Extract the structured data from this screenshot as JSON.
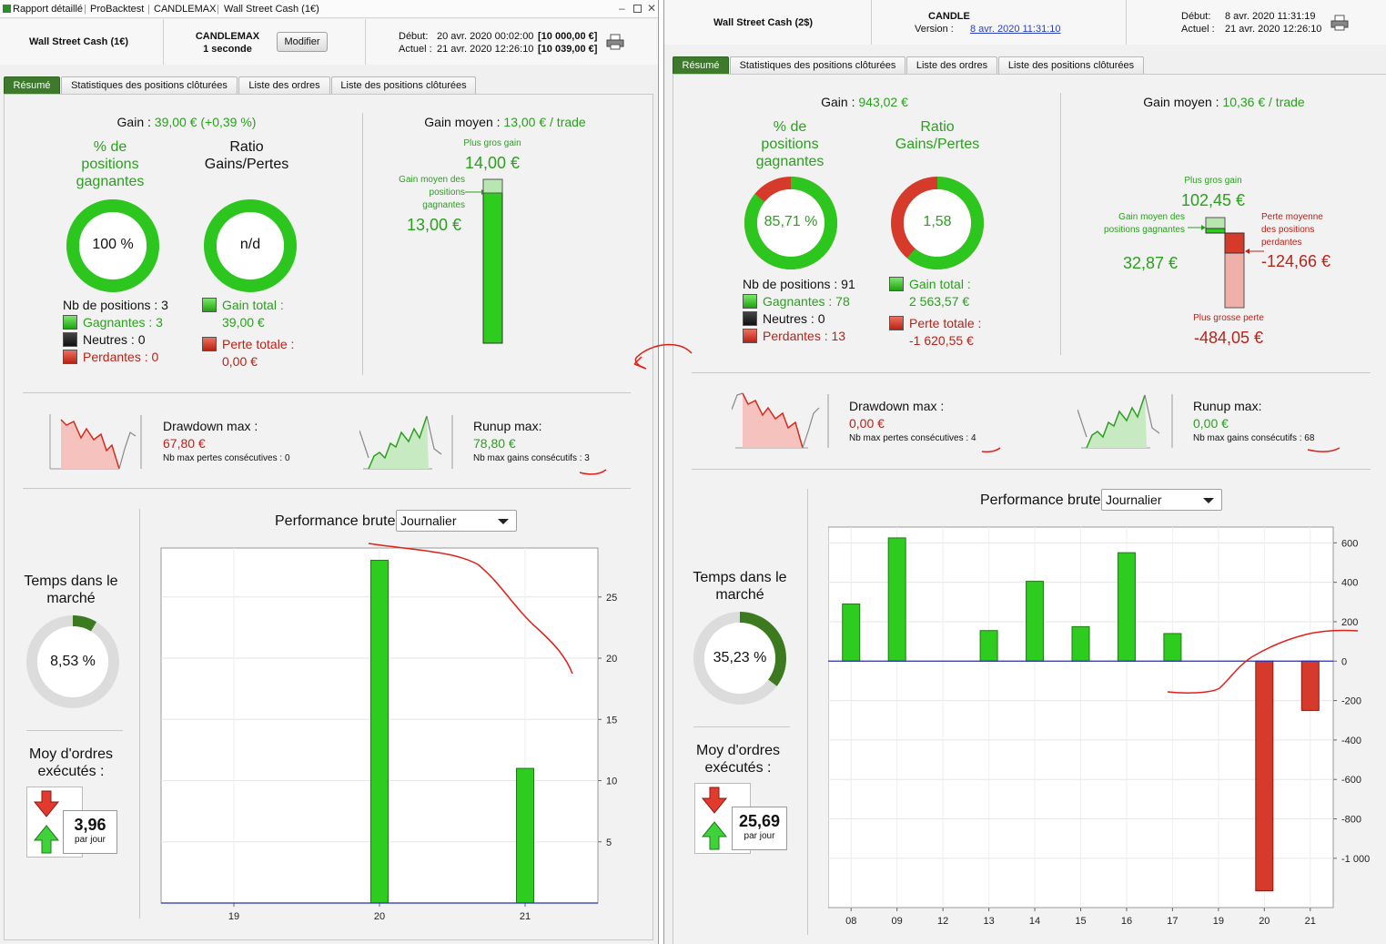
{
  "window": {
    "title": "Rapport détaillé",
    "tabs": [
      "ProBacktest",
      "CANDLEMAX",
      "Wall Street Cash (1€)"
    ]
  },
  "left": {
    "instrument": "Wall Street Cash (1€)",
    "system_name": "CANDLEMAX",
    "system_sub": "1 seconde",
    "modify_label": "Modifier",
    "start_label": "Début:",
    "start_value": "20 avr. 2020 00:02:00",
    "start_capital": "[10 000,00 €]",
    "current_label": "Actuel :",
    "current_value": "21 avr. 2020 12:26:10",
    "current_capital": "[10 039,00 €]",
    "tabs": [
      "Résumé",
      "Statistiques des positions clôturées",
      "Liste des ordres",
      "Liste des positions clôturées"
    ],
    "gain_label": "Gain :",
    "gain_value": "39,00 € (+0,39 %)",
    "pct_label": "% de positions gagnantes",
    "pct_value": "100 %",
    "pct_fraction": 1.0,
    "ratio_label": "Ratio Gains/Pertes",
    "ratio_value": "n/d",
    "nb_positions": "Nb de positions : 3",
    "winners": "Gagnantes : 3",
    "neutral": "Neutres : 0",
    "losers": "Perdantes : 0",
    "gain_total_label": "Gain total :",
    "gain_total_value": "39,00 €",
    "loss_total_label": "Perte totale :",
    "loss_total_value": "0,00 €",
    "avg_gain_label": "Gain moyen :",
    "avg_gain_value": "13,00 € / trade",
    "biggest_gain_label": "Plus gros gain",
    "biggest_gain_value": "14,00 €",
    "avg_win_label": "Gain moyen des positions gagnantes",
    "avg_win_value": "13,00 €",
    "drawdown_label": "Drawdown max :",
    "drawdown_value": "67,80 €",
    "max_losses_label": "Nb max pertes consécutives : 0",
    "runup_label": "Runup max:",
    "runup_value": "78,80 €",
    "max_gains_label": "Nb max gains consécutifs : 3",
    "time_market_label": "Temps dans le marché",
    "time_market_value": "8,53 %",
    "time_market_fraction": 0.0853,
    "orders_label": "Moy d'ordres exécutés :",
    "orders_value": "3,96",
    "orders_unit": "par jour",
    "perf_label": "Performance brute",
    "perf_period": "Journalier"
  },
  "right": {
    "instrument": "Wall Street Cash (2$)",
    "system_name": "CANDLE",
    "version_label": "Version :",
    "version_value": "8 avr. 2020 11:31:10",
    "start_label": "Début:",
    "start_value": "8 avr. 2020 11:31:19",
    "current_label": "Actuel :",
    "current_value": "21 avr. 2020 12:26:10",
    "tabs": [
      "Résumé",
      "Statistiques des positions clôturées",
      "Liste des ordres",
      "Liste des positions clôturées"
    ],
    "gain_label": "Gain :",
    "gain_value": "943,02 €",
    "pct_label": "% de positions gagnantes",
    "pct_value": "85,71 %",
    "pct_fraction": 0.8571,
    "ratio_label": "Ratio Gains/Pertes",
    "ratio_value": "1,58",
    "ratio_fraction": 0.6126,
    "nb_positions": "Nb de positions : 91",
    "winners": "Gagnantes : 78",
    "neutral": "Neutres : 0",
    "losers": "Perdantes : 13",
    "gain_total_label": "Gain total :",
    "gain_total_value": "2 563,57 €",
    "loss_total_label": "Perte totale :",
    "loss_total_value": "-1 620,55 €",
    "avg_gain_label": "Gain moyen :",
    "avg_gain_value": "10,36 € / trade",
    "biggest_gain_label": "Plus gros gain",
    "biggest_gain_value": "102,45 €",
    "avg_win_label": "Gain moyen des positions gagnantes",
    "avg_win_value": "32,87 €",
    "avg_loss_label": "Perte moyenne des positions perdantes",
    "avg_loss_value": "-124,66 €",
    "biggest_loss_label": "Plus grosse perte",
    "biggest_loss_value": "-484,05 €",
    "drawdown_label": "Drawdown max :",
    "drawdown_value": "0,00 €",
    "max_losses_label": "Nb max pertes consécutives : 4",
    "runup_label": "Runup max:",
    "runup_value": "0,00 €",
    "max_gains_label": "Nb max gains consécutifs : 68",
    "time_market_label": "Temps dans le marché",
    "time_market_value": "35,23 %",
    "time_market_fraction": 0.3523,
    "orders_label": "Moy d'ordres exécutés :",
    "orders_value": "25,69",
    "orders_unit": "par jour",
    "perf_label": "Performance brute",
    "perf_period": "Journalier"
  },
  "chart_data": [
    {
      "type": "bar",
      "categories": [
        "19",
        "20",
        "21"
      ],
      "values": [
        0,
        28,
        11
      ],
      "ylim": [
        0,
        29
      ],
      "yticks": [
        5,
        10,
        15,
        20,
        25
      ],
      "color_pos": "#2ecc1f",
      "color_neg": "#d63a2a"
    },
    {
      "type": "bar",
      "categories": [
        "08",
        "09",
        "12",
        "13",
        "14",
        "15",
        "16",
        "17",
        "19",
        "20",
        "21"
      ],
      "values": [
        290,
        625,
        0,
        155,
        405,
        175,
        550,
        140,
        0,
        -1165,
        -250
      ],
      "ylim": [
        -1250,
        680
      ],
      "yticks": [
        600,
        400,
        200,
        0,
        -200,
        -400,
        -600,
        -800,
        -1000
      ],
      "ytick_labels": [
        "600",
        "400",
        "200",
        "0",
        "-200",
        "-400",
        "-600",
        "-800",
        "-1 000"
      ],
      "color_pos": "#2ecc1f",
      "color_neg": "#d63a2a"
    }
  ]
}
